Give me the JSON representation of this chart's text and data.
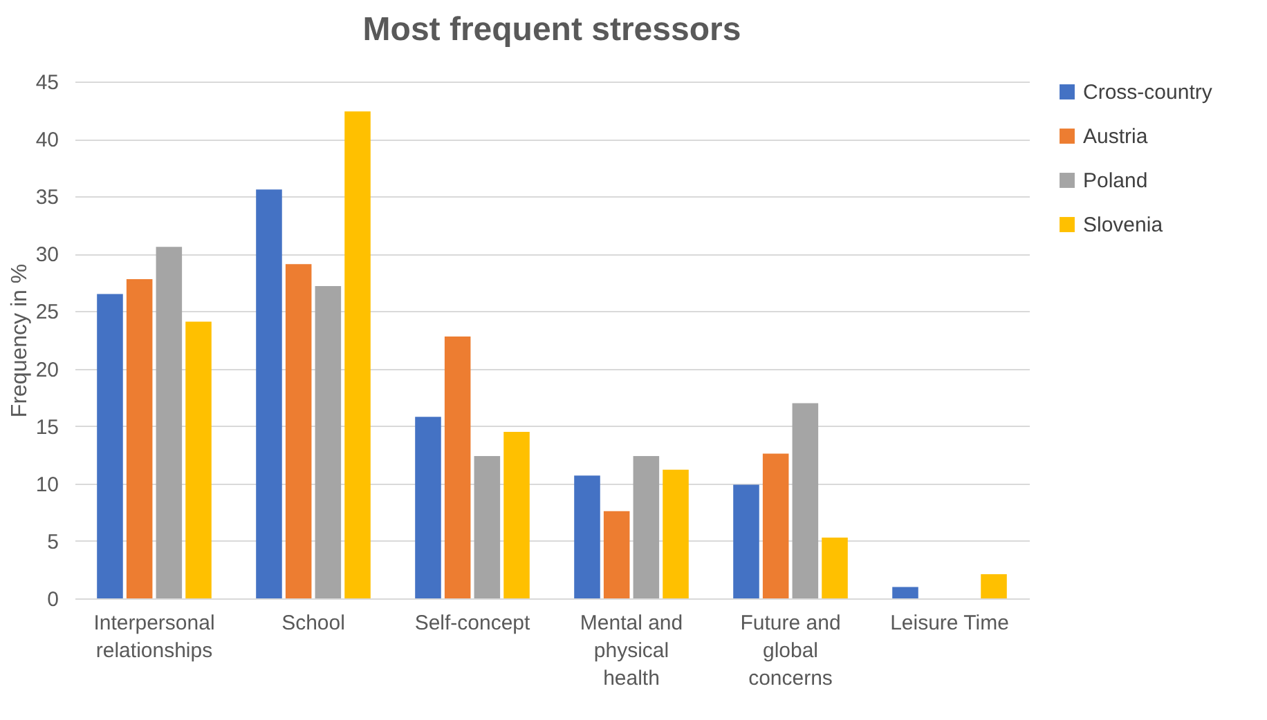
{
  "chart_data": {
    "type": "bar",
    "title": "Most frequent stressors",
    "ylabel": "Frequency in %",
    "categories": [
      "Interpersonal relationships",
      "School",
      "Self-concept",
      "Mental and physical health",
      "Future and global concerns",
      "Leisure Time"
    ],
    "series": [
      {
        "name": "Cross-country",
        "color": "#4472c4",
        "values": [
          26.5,
          35.6,
          15.8,
          10.7,
          9.9,
          1.0
        ]
      },
      {
        "name": "Austria",
        "color": "#ed7d31",
        "values": [
          27.8,
          29.1,
          22.8,
          7.6,
          12.6,
          0
        ]
      },
      {
        "name": "Poland",
        "color": "#a5a5a5",
        "values": [
          30.6,
          27.2,
          12.4,
          12.4,
          17.0,
          0
        ]
      },
      {
        "name": "Slovenia",
        "color": "#ffc000",
        "values": [
          24.1,
          42.4,
          14.5,
          11.2,
          5.3,
          2.1
        ]
      }
    ],
    "ylim": [
      0,
      45
    ],
    "yticks": [
      0,
      5,
      10,
      15,
      20,
      25,
      30,
      35,
      40,
      45
    ],
    "grid": "y",
    "legend": "right"
  }
}
